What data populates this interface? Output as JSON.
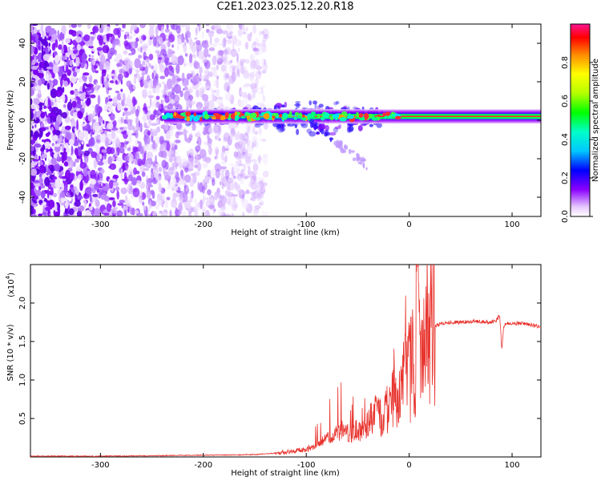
{
  "title": "C2E1.2023.025.12.20.R18",
  "chart_data": [
    {
      "type": "heatmap",
      "xlabel": "Height of straight line (km)",
      "ylabel": "Frequency (Hz)",
      "xlim": [
        -368,
        128
      ],
      "ylim": [
        -50,
        50
      ],
      "x_ticks": [
        -300,
        -200,
        -100,
        0,
        100
      ],
      "x_tick_labels": [
        "-300",
        "-200",
        "-100",
        "0",
        "100"
      ],
      "y_ticks": [
        -40,
        -20,
        0,
        20,
        40
      ],
      "y_tick_labels": [
        "-40",
        "-20",
        "0",
        "20",
        "40"
      ],
      "colorbar": {
        "label": "Normalized spectral amplitude",
        "range": [
          0,
          1
        ],
        "ticks": [
          0,
          0.2,
          0.4,
          0.6,
          0.8
        ],
        "tick_labels": [
          "0.0",
          "0.2",
          "0.4",
          "0.6",
          "0.8"
        ]
      },
      "features": {
        "signal_band_center_hz": 2,
        "signal_band_start_km": -238,
        "signal_band_end_km": 128,
        "noise_region_end_km": -170,
        "grid": false
      }
    },
    {
      "type": "line",
      "xlabel": "Height of straight line (km)",
      "ylabel": "SNR (10 * v/v)",
      "y_multiplier_label": "(x10",
      "y_multiplier_exp": "4",
      "xlim": [
        -368,
        128
      ],
      "ylim": [
        0,
        2.5
      ],
      "x_ticks": [
        -300,
        -200,
        -100,
        0,
        100
      ],
      "x_tick_labels": [
        "-300",
        "-200",
        "-100",
        "0",
        "100"
      ],
      "y_ticks": [
        0.5,
        1.0,
        1.5,
        2.0
      ],
      "y_tick_labels": [
        "0.5",
        "1.0",
        "1.5",
        "2.0"
      ],
      "series_color": "#e8322c",
      "grid": false,
      "x": [
        -368,
        -340,
        -300,
        -260,
        -220,
        -180,
        -150,
        -130,
        -115,
        -100,
        -90,
        -80,
        -72,
        -65,
        -58,
        -50,
        -42,
        -35,
        -28,
        -22,
        -17,
        -13,
        -9,
        -6,
        -3,
        0,
        3,
        6,
        8,
        10,
        13,
        18,
        25,
        30,
        40,
        50,
        60,
        70,
        80,
        85,
        88,
        90,
        92,
        95,
        100,
        110,
        120,
        128
      ],
      "y": [
        0.01,
        0.01,
        0.01,
        0.015,
        0.02,
        0.025,
        0.03,
        0.05,
        0.07,
        0.1,
        0.15,
        0.25,
        0.3,
        0.35,
        0.3,
        0.35,
        0.4,
        0.55,
        0.5,
        0.6,
        0.7,
        0.8,
        0.9,
        1.0,
        1.05,
        1.1,
        1.2,
        1.3,
        0.4,
        1.3,
        1.5,
        1.62,
        1.7,
        1.73,
        1.75,
        1.75,
        1.76,
        1.76,
        1.75,
        1.78,
        1.85,
        1.4,
        1.7,
        1.74,
        1.74,
        1.73,
        1.71,
        1.69
      ]
    }
  ]
}
